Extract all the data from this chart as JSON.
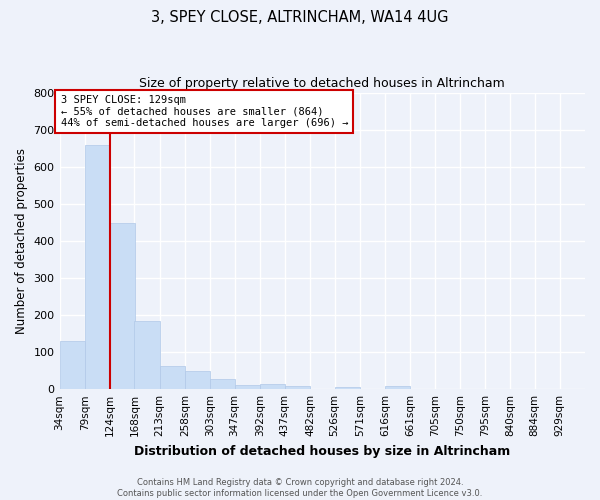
{
  "title": "3, SPEY CLOSE, ALTRINCHAM, WA14 4UG",
  "subtitle": "Size of property relative to detached houses in Altrincham",
  "xlabel": "Distribution of detached houses by size in Altrincham",
  "ylabel": "Number of detached properties",
  "bar_color": "#c9ddf5",
  "bar_edge_color": "#b0c8e8",
  "background_color": "#eef2fa",
  "grid_color": "#ffffff",
  "annotation_line_color": "#cc0000",
  "annotation_box_color": "#cc0000",
  "annotation_line1": "3 SPEY CLOSE: 129sqm",
  "annotation_line2": "← 55% of detached houses are smaller (864)",
  "annotation_line3": "44% of semi-detached houses are larger (696) →",
  "categories": [
    "34sqm",
    "79sqm",
    "124sqm",
    "168sqm",
    "213sqm",
    "258sqm",
    "303sqm",
    "347sqm",
    "392sqm",
    "437sqm",
    "482sqm",
    "526sqm",
    "571sqm",
    "616sqm",
    "661sqm",
    "705sqm",
    "750sqm",
    "795sqm",
    "840sqm",
    "884sqm",
    "929sqm"
  ],
  "bin_edges": [
    34,
    79,
    124,
    168,
    213,
    258,
    303,
    347,
    392,
    437,
    482,
    526,
    571,
    616,
    661,
    705,
    750,
    795,
    840,
    884,
    929
  ],
  "values": [
    130,
    660,
    450,
    185,
    62,
    48,
    27,
    12,
    13,
    9,
    0,
    7,
    0,
    8,
    0,
    0,
    0,
    0,
    0,
    0,
    0
  ],
  "ylim": [
    0,
    800
  ],
  "yticks": [
    0,
    100,
    200,
    300,
    400,
    500,
    600,
    700,
    800
  ],
  "property_line_x": 124,
  "footer_line1": "Contains HM Land Registry data © Crown copyright and database right 2024.",
  "footer_line2": "Contains public sector information licensed under the Open Government Licence v3.0."
}
